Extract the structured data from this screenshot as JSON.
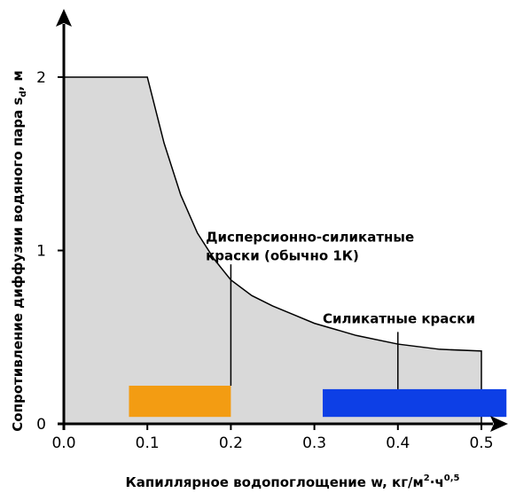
{
  "chart_data": {
    "type": "area",
    "title": "",
    "xlabel": {
      "text": "Капиллярное водопоглощение w, кг/м",
      "sup1": "2",
      "dot": "·",
      "unit": "ч",
      "sup2": "0,5"
    },
    "ylabel": {
      "text": "Сопротивление диффузии водяного пара s",
      "sub": "d",
      "unit": ", м"
    },
    "xlim": [
      0,
      0.53
    ],
    "ylim": [
      0,
      2.2
    ],
    "x_ticks": [
      "0.0",
      "0.1",
      "0.2",
      "0.3",
      "0.4",
      "0.5"
    ],
    "x_tick_values": [
      0.0,
      0.1,
      0.2,
      0.3,
      0.4,
      0.5
    ],
    "y_ticks": [
      "0",
      "1",
      "2"
    ],
    "y_tick_values": [
      0,
      1,
      2
    ],
    "grid": false,
    "region": {
      "color": "#d9d9d9",
      "boundary": [
        [
          0.0,
          2.0
        ],
        [
          0.1,
          2.0
        ],
        [
          0.12,
          1.62
        ],
        [
          0.14,
          1.32
        ],
        [
          0.16,
          1.1
        ],
        [
          0.18,
          0.95
        ],
        [
          0.2,
          0.83
        ],
        [
          0.225,
          0.74
        ],
        [
          0.25,
          0.68
        ],
        [
          0.275,
          0.63
        ],
        [
          0.3,
          0.58
        ],
        [
          0.35,
          0.51
        ],
        [
          0.4,
          0.46
        ],
        [
          0.45,
          0.43
        ],
        [
          0.5,
          0.42
        ]
      ]
    },
    "bars": [
      {
        "name": "dispersion-silicate",
        "x0": 0.078,
        "x1": 0.2,
        "y0": 0.04,
        "y1": 0.22,
        "color": "#f39c12"
      },
      {
        "name": "silicate",
        "x0": 0.31,
        "x1": 0.53,
        "y0": 0.04,
        "y1": 0.2,
        "color": "#0d3fe6"
      }
    ],
    "annotations": [
      {
        "lines": [
          "Дисперсионно-силикатные",
          "краски (обычно 1К)"
        ],
        "text_x": 0.17,
        "text_y": 1.05,
        "leader_x": 0.2,
        "leader_from": 0.92,
        "leader_to": 0.22
      },
      {
        "lines": [
          "Силикатные краски"
        ],
        "text_x": 0.31,
        "text_y": 0.58,
        "leader_x": 0.4,
        "leader_from": 0.53,
        "leader_to": 0.2
      }
    ]
  }
}
